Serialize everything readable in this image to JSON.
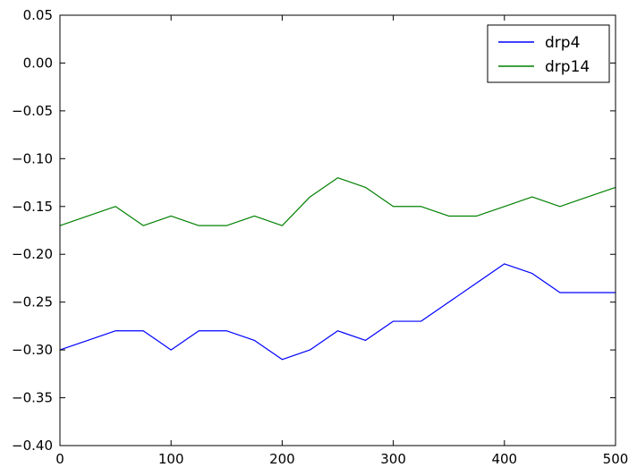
{
  "chart_data": {
    "type": "line",
    "title": "",
    "xlabel": "",
    "ylabel": "",
    "xlim": [
      0,
      500
    ],
    "ylim": [
      -0.4,
      0.05
    ],
    "x_ticks": [
      0,
      100,
      200,
      300,
      400,
      500
    ],
    "x_tick_labels": [
      "0",
      "100",
      "200",
      "300",
      "400",
      "500"
    ],
    "y_ticks": [
      0.05,
      0.0,
      -0.05,
      -0.1,
      -0.15,
      -0.2,
      -0.25,
      -0.3,
      -0.35,
      -0.4
    ],
    "y_tick_labels": [
      "0.05",
      "0.00",
      "−0.05",
      "−0.10",
      "−0.15",
      "−0.20",
      "−0.25",
      "−0.30",
      "−0.35",
      "−0.40"
    ],
    "grid": false,
    "legend_position": "top-right",
    "series": [
      {
        "name": "drp4",
        "color": "#0000ff",
        "x": [
          0,
          25,
          50,
          75,
          100,
          125,
          150,
          175,
          200,
          225,
          250,
          275,
          300,
          325,
          350,
          375,
          400,
          425,
          450,
          475,
          500
        ],
        "y": [
          -0.3,
          -0.29,
          -0.28,
          -0.28,
          -0.3,
          -0.28,
          -0.28,
          -0.29,
          -0.31,
          -0.3,
          -0.28,
          -0.29,
          -0.27,
          -0.27,
          -0.25,
          -0.23,
          -0.21,
          -0.22,
          -0.24,
          -0.24,
          -0.24
        ]
      },
      {
        "name": "drp14",
        "color": "#008000",
        "x": [
          0,
          25,
          50,
          75,
          100,
          125,
          150,
          175,
          200,
          225,
          250,
          275,
          300,
          325,
          350,
          375,
          400,
          425,
          450,
          475,
          500
        ],
        "y": [
          -0.17,
          -0.16,
          -0.15,
          -0.17,
          -0.16,
          -0.17,
          -0.17,
          -0.16,
          -0.17,
          -0.14,
          -0.12,
          -0.13,
          -0.15,
          -0.15,
          -0.16,
          -0.16,
          -0.15,
          -0.14,
          -0.15,
          -0.14,
          -0.13
        ]
      }
    ]
  }
}
